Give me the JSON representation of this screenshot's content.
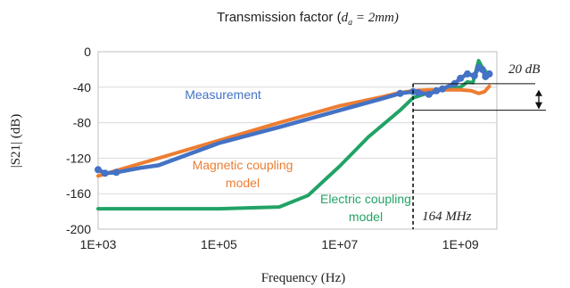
{
  "chart_data": {
    "type": "line",
    "title": "Transmission factor (",
    "title_math": "d",
    "title_math_sub": "a",
    "title_math_rest": " = 2mm)",
    "xlabel": "Frequency (Hz)",
    "ylabel": "|S21| (dB)",
    "x_scale": "log",
    "xlim": [
      1000,
      4000000000
    ],
    "ylim": [
      -200,
      0
    ],
    "x_ticks": [
      {
        "value": 1000,
        "label": "1E+03"
      },
      {
        "value": 100000,
        "label": "1E+05"
      },
      {
        "value": 10000000,
        "label": "1E+07"
      },
      {
        "value": 1000000000,
        "label": "1E+09"
      }
    ],
    "y_ticks": [
      {
        "value": 0,
        "label": "0"
      },
      {
        "value": -40,
        "label": "-40"
      },
      {
        "value": -80,
        "label": "-80"
      },
      {
        "value": -120,
        "label": "-120"
      },
      {
        "value": -160,
        "label": "-160"
      },
      {
        "value": -200,
        "label": "-200"
      }
    ],
    "grid": "horizontal",
    "series": [
      {
        "name": "Measurement",
        "color": "#4472c4",
        "label_lines": [
          "Measurement"
        ],
        "x": [
          1000,
          1300,
          2000,
          5000,
          10000,
          100000,
          1000000,
          10000000,
          50000000,
          100000000,
          164000000,
          200000000,
          300000000,
          400000000,
          500000000,
          800000000,
          1000000000,
          1300000000,
          1700000000,
          2000000000,
          2300000000,
          2600000000,
          3000000000
        ],
        "y": [
          -133,
          -137,
          -136,
          -131,
          -128,
          -103,
          -85,
          -66,
          -53,
          -47,
          -45,
          -46,
          -48,
          -44,
          -42,
          -36,
          -30,
          -25,
          -27,
          -18,
          -20,
          -28,
          -25
        ]
      },
      {
        "name": "Magnetic coupling model",
        "color": "#ed7d31",
        "label_lines": [
          "Magnetic coupling",
          "model"
        ],
        "x": [
          1000,
          10000,
          100000,
          1000000,
          10000000,
          50000000,
          100000000,
          164000000,
          300000000,
          500000000,
          1000000000,
          1500000000,
          2000000000,
          2500000000,
          3000000000
        ],
        "y": [
          -140,
          -120,
          -100,
          -80,
          -61,
          -51,
          -46,
          -44,
          -43,
          -43,
          -43,
          -44,
          -47,
          -45,
          -39
        ]
      },
      {
        "name": "Electric coupling model",
        "color": "#21a366",
        "label_lines": [
          "Electric coupling",
          "model"
        ],
        "x": [
          1000,
          10000,
          100000,
          1000000,
          3000000,
          10000000,
          30000000,
          100000000,
          164000000,
          300000000,
          500000000,
          1000000000,
          1300000000,
          1600000000,
          2000000000,
          2300000000,
          2600000000,
          2900000000
        ],
        "y": [
          -177,
          -177,
          -177,
          -175,
          -162,
          -129,
          -96,
          -66,
          -52,
          -46,
          -42,
          -40,
          -34,
          -35,
          -10,
          -18,
          -22,
          -27
        ]
      }
    ],
    "annotations": {
      "vline_x": 164000000,
      "vline_label": "164 MHz",
      "arrow_top_y": -36,
      "arrow_bottom_y": -66,
      "arrow_label": "20 dB"
    }
  }
}
